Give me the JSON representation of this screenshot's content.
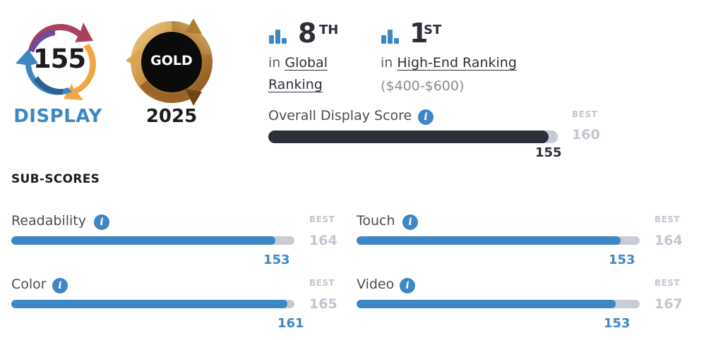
{
  "badge": {
    "score": "155",
    "category": "DISPLAY",
    "award": "GOLD",
    "award_year": "2025"
  },
  "global_rank": {
    "number": "8",
    "suffix": "TH",
    "prefix": "in",
    "link": "Global Ranking"
  },
  "segment_rank": {
    "number": "1",
    "suffix": "ST",
    "prefix": "in",
    "link": "High-End Ranking",
    "price_range": "($400-$600)"
  },
  "overall": {
    "label": "Overall Display Score",
    "best_label": "BEST",
    "best": "160",
    "score": "155",
    "fraction": 0.969
  },
  "subscores_title": "SUB-SCORES",
  "subscores": [
    {
      "label": "Readability",
      "best_label": "BEST",
      "best": "164",
      "score": "153",
      "fraction": 0.933
    },
    {
      "label": "Touch",
      "best_label": "BEST",
      "best": "164",
      "score": "153",
      "fraction": 0.933
    },
    {
      "label": "Color",
      "best_label": "BEST",
      "best": "165",
      "score": "161",
      "fraction": 0.976
    },
    {
      "label": "Video",
      "best_label": "BEST",
      "best": "167",
      "score": "153",
      "fraction": 0.916
    }
  ],
  "colors": {
    "accent_blue": "#3d87c4",
    "dark": "#2b2f3a",
    "track": "#c8cad6",
    "gold": "#c8913a"
  }
}
